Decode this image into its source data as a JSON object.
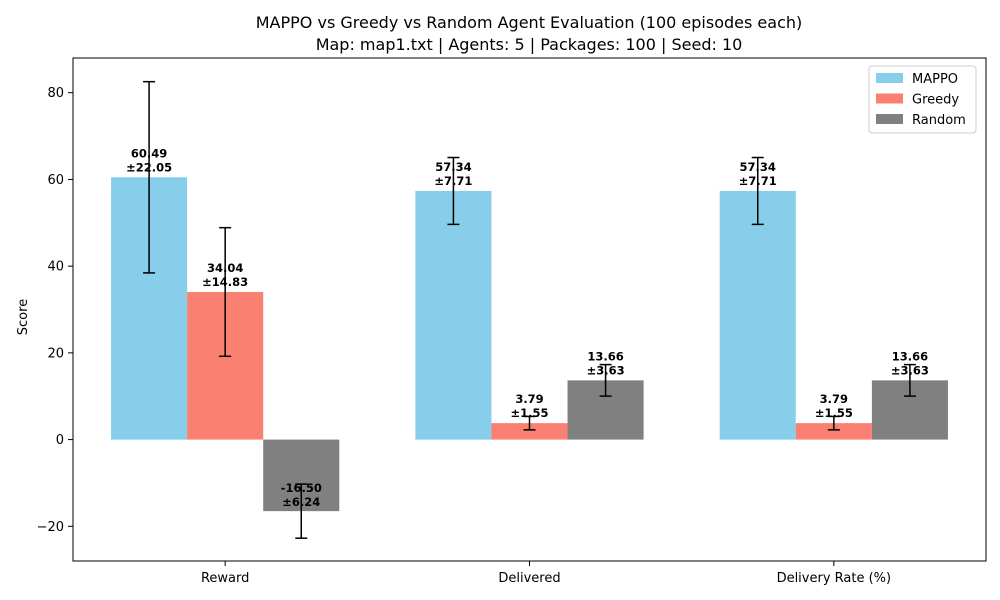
{
  "chart_data": {
    "type": "bar",
    "title": "MAPPO vs Greedy vs Random Agent Evaluation (100 episodes each)",
    "subtitle": "Map: map1.txt | Agents: 5 | Packages: 100 | Seed: 10",
    "xlabel": "",
    "ylabel": "Score",
    "ylim": [
      -28,
      88
    ],
    "yticks": [
      -20,
      0,
      20,
      40,
      60,
      80
    ],
    "ytick_labels": [
      "−20",
      "0",
      "20",
      "40",
      "60",
      "80"
    ],
    "categories": [
      "Reward",
      "Delivered",
      "Delivery Rate (%)"
    ],
    "grid": false,
    "legend_position": "top-right",
    "error_bars": true,
    "series": [
      {
        "name": "MAPPO",
        "color": "#87CEEB",
        "values": [
          60.49,
          57.34,
          57.34
        ],
        "errors": [
          22.05,
          7.71,
          7.71
        ],
        "labels": [
          [
            "60.49",
            "±22.05"
          ],
          [
            "57.34",
            "±7.71"
          ],
          [
            "57.34",
            "±7.71"
          ]
        ]
      },
      {
        "name": "Greedy",
        "color": "#FA8072",
        "values": [
          34.04,
          3.79,
          3.79
        ],
        "errors": [
          14.83,
          1.55,
          1.55
        ],
        "labels": [
          [
            "34.04",
            "±14.83"
          ],
          [
            "3.79",
            "±1.55"
          ],
          [
            "3.79",
            "±1.55"
          ]
        ]
      },
      {
        "name": "Random",
        "color": "#808080",
        "values": [
          -16.5,
          13.66,
          13.66
        ],
        "errors": [
          6.24,
          3.63,
          3.63
        ],
        "labels": [
          [
            "-16.50",
            "±6.24"
          ],
          [
            "13.66",
            "±3.63"
          ],
          [
            "13.66",
            "±3.63"
          ]
        ]
      }
    ]
  }
}
